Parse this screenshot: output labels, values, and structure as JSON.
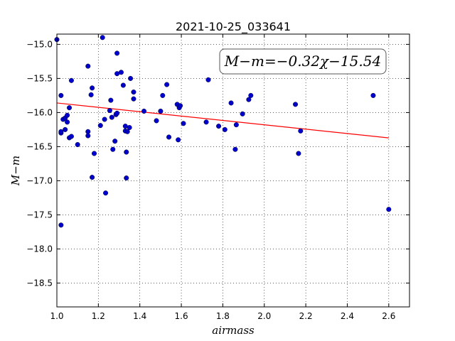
{
  "chart_data": {
    "type": "scatter",
    "title": "2021-10-25_033641",
    "xlabel": "airmass",
    "ylabel": "M−m",
    "annotation": "M−m=−0.32χ−15.54",
    "xlim": [
      1.0,
      2.7
    ],
    "ylim": [
      -18.85,
      -14.85
    ],
    "y_inverted": true,
    "grid": true,
    "xticks": [
      1.0,
      1.2,
      1.4,
      1.6,
      1.8,
      2.0,
      2.2,
      2.4,
      2.6
    ],
    "xtick_labels": [
      "1.0",
      "1.2",
      "1.4",
      "1.6",
      "1.8",
      "2.0",
      "2.2",
      "2.4",
      "2.6"
    ],
    "yticks": [
      -15.0,
      -15.5,
      -16.0,
      -16.5,
      -17.0,
      -17.5,
      -18.0,
      -18.5
    ],
    "ytick_labels": [
      "−15.0",
      "−15.5",
      "−16.0",
      "−16.5",
      "−17.0",
      "−17.5",
      "−18.0",
      "−18.5"
    ],
    "fit": {
      "slope": -0.32,
      "intercept": -15.54,
      "x_range": [
        1.0,
        2.6
      ],
      "color": "#ff0000"
    },
    "point_color": "#0000cc",
    "series": [
      {
        "x": [
          1.0,
          1.02,
          1.02,
          1.02,
          1.02,
          1.03,
          1.04,
          1.04,
          1.05,
          1.05,
          1.06,
          1.06,
          1.07,
          1.07,
          1.1,
          1.15,
          1.15,
          1.15,
          1.165,
          1.17,
          1.17,
          1.18,
          1.21,
          1.22,
          1.23,
          1.235,
          1.255,
          1.26,
          1.265,
          1.27,
          1.28,
          1.285,
          1.29,
          1.29,
          1.29,
          1.31,
          1.32,
          1.33,
          1.33,
          1.335,
          1.335,
          1.34,
          1.35,
          1.355,
          1.37,
          1.37,
          1.42,
          1.48,
          1.5,
          1.51,
          1.53,
          1.54,
          1.58,
          1.585,
          1.59,
          1.595,
          1.61,
          1.72,
          1.73,
          1.78,
          1.81,
          1.84,
          1.86,
          1.865,
          1.895,
          1.925,
          1.935,
          2.15,
          2.165,
          2.175,
          2.525,
          2.6
        ],
        "y": [
          -14.93,
          -16.3,
          -16.28,
          -17.65,
          -15.75,
          -16.1,
          -16.08,
          -16.25,
          -16.14,
          -16.04,
          -15.93,
          -16.37,
          -16.35,
          -15.53,
          -16.47,
          -15.32,
          -16.28,
          -16.34,
          -15.74,
          -15.64,
          -16.95,
          -16.6,
          -16.19,
          -14.9,
          -16.1,
          -17.18,
          -15.97,
          -15.82,
          -16.07,
          -16.54,
          -16.42,
          -16.03,
          -15.43,
          -16.01,
          -15.13,
          -15.41,
          -15.6,
          -16.2,
          -16.27,
          -16.58,
          -16.96,
          -16.28,
          -16.22,
          -15.5,
          -15.8,
          -15.7,
          -15.98,
          -16.12,
          -15.98,
          -15.75,
          -15.59,
          -16.36,
          -15.88,
          -16.4,
          -15.93,
          -15.9,
          -16.16,
          -16.14,
          -15.52,
          -16.2,
          -16.25,
          -15.86,
          -16.54,
          -16.18,
          -16.02,
          -15.81,
          -15.75,
          -15.88,
          -16.6,
          -16.27,
          -15.75,
          -17.42
        ]
      }
    ]
  }
}
